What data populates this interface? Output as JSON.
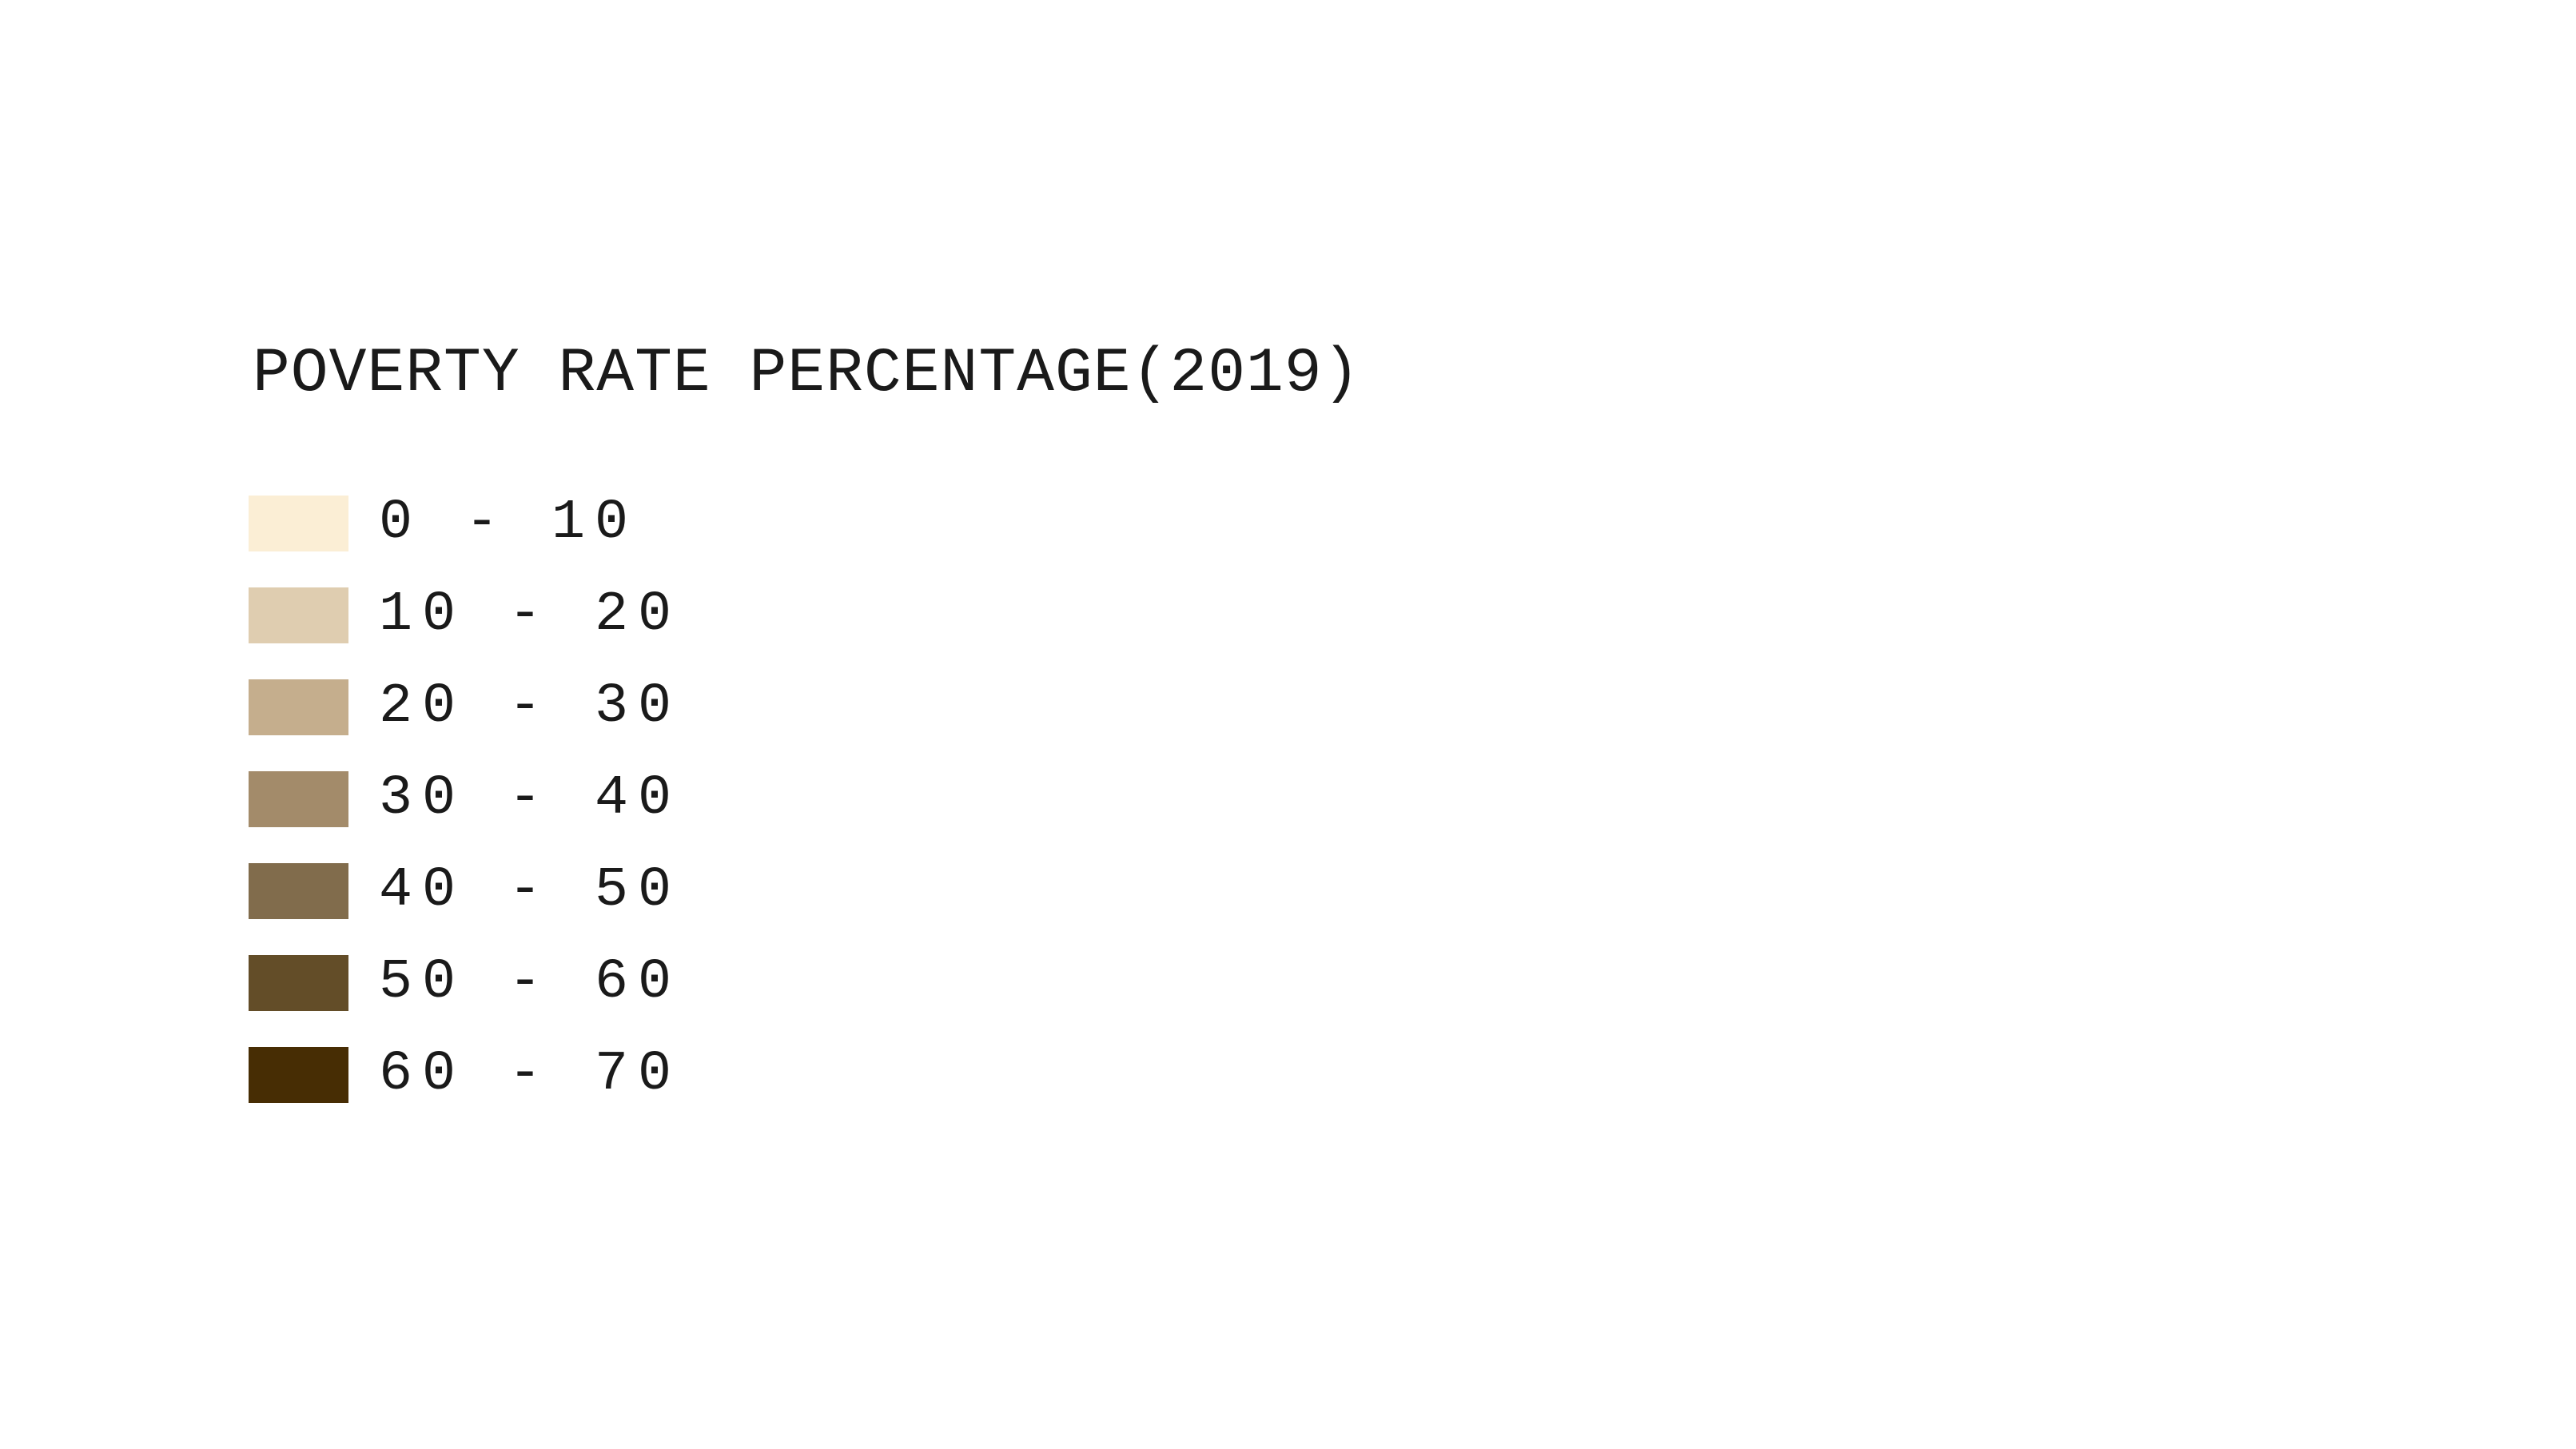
{
  "legend": {
    "title": "POVERTY RATE PERCENTAGE(2019)",
    "items": [
      {
        "label": "0 - 10",
        "color": "#fbeed5"
      },
      {
        "label": "10 - 20",
        "color": "#dfcdb0"
      },
      {
        "label": "20 - 30",
        "color": "#c5ae8d"
      },
      {
        "label": "30 - 40",
        "color": "#a38b6a"
      },
      {
        "label": "40 - 50",
        "color": "#816c4c"
      },
      {
        "label": "50 - 60",
        "color": "#634d28"
      },
      {
        "label": "60 - 70",
        "color": "#472d04"
      }
    ]
  }
}
